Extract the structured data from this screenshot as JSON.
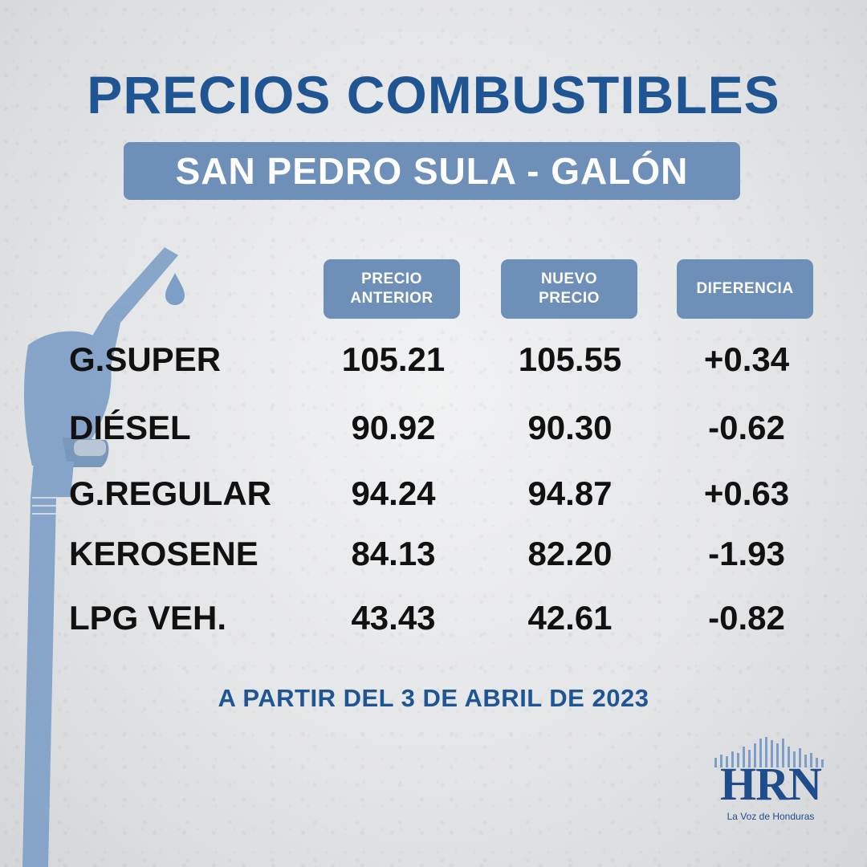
{
  "title": "PRECIOS COMBUSTIBLES",
  "subtitle": "SAN PEDRO SULA - GALÓN",
  "headers": {
    "previous_line1": "PRECIO",
    "previous_line2": "ANTERIOR",
    "new_line1": "NUEVO",
    "new_line2": "PRECIO",
    "difference": "DIFERENCIA"
  },
  "rows": [
    {
      "fuel": "G.SUPER",
      "previous": "105.21",
      "new": "105.55",
      "difference": "+0.34"
    },
    {
      "fuel": "DIÉSEL",
      "previous": "90.92",
      "new": "90.30",
      "difference": "-0.62"
    },
    {
      "fuel": "G.REGULAR",
      "previous": "94.24",
      "new": "94.87",
      "difference": "+0.63"
    },
    {
      "fuel": "KEROSENE",
      "previous": "84.13",
      "new": "82.20",
      "difference": "-1.93"
    },
    {
      "fuel": "LPG VEH.",
      "previous": "43.43",
      "new": "42.61",
      "difference": "-0.82"
    }
  ],
  "footer": "A PARTIR DEL 3 DE ABRIL DE 2023",
  "logo": {
    "name": "HRN",
    "tagline": "La Voz de Honduras"
  },
  "icons": {
    "pump": "fuel-nozzle-icon",
    "logo": "hrn-logo"
  },
  "colors": {
    "primary": "#1f5592",
    "panel": "#6e90b8",
    "text": "#111111",
    "background": "#e9eaeb"
  }
}
